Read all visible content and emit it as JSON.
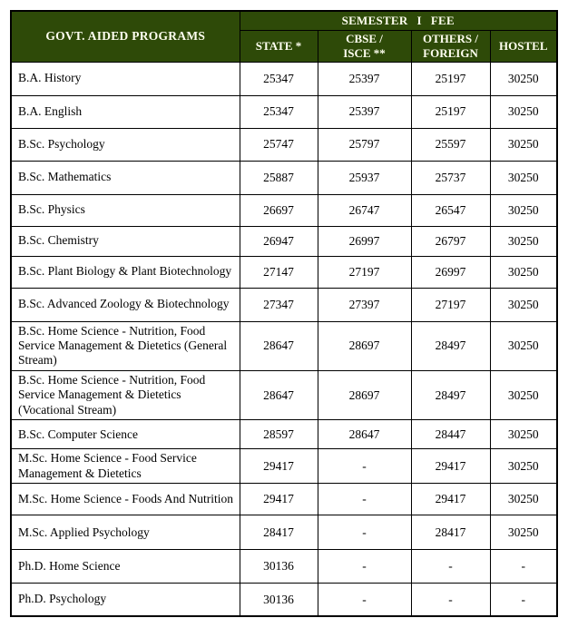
{
  "table": {
    "program_header": "GOVT. AIDED PROGRAMS",
    "fee_header": "SEMESTER I FEE",
    "columns": {
      "state": "STATE *",
      "cbse_isce": "CBSE /\nISCE **",
      "others_foreign": "OTHERS /\nFOREIGN",
      "hostel": "HOSTEL"
    },
    "rows": [
      {
        "program": "B.A. History",
        "state": "25347",
        "cbse": "25397",
        "others": "25197",
        "hostel": "30250"
      },
      {
        "program": "B.A. English",
        "state": "25347",
        "cbse": "25397",
        "others": "25197",
        "hostel": "30250"
      },
      {
        "program": "B.Sc. Psychology",
        "state": "25747",
        "cbse": "25797",
        "others": "25597",
        "hostel": "30250"
      },
      {
        "program": "B.Sc. Mathematics",
        "state": "25887",
        "cbse": "25937",
        "others": "25737",
        "hostel": "30250"
      },
      {
        "program": "B.Sc. Physics",
        "state": "26697",
        "cbse": "26747",
        "others": "26547",
        "hostel": "30250"
      },
      {
        "program": "B.Sc. Chemistry",
        "state": "26947",
        "cbse": "26997",
        "others": "26797",
        "hostel": "30250"
      },
      {
        "program": "B.Sc. Plant Biology & Plant Biotechnology",
        "state": "27147",
        "cbse": "27197",
        "others": "26997",
        "hostel": "30250"
      },
      {
        "program": "B.Sc. Advanced Zoology & Biotechnology",
        "state": "27347",
        "cbse": "27397",
        "others": "27197",
        "hostel": "30250"
      },
      {
        "program": "B.Sc. Home Science - Nutrition, Food Service Management & Dietetics (General Stream)",
        "state": "28647",
        "cbse": "28697",
        "others": "28497",
        "hostel": "30250"
      },
      {
        "program": "B.Sc. Home Science - Nutrition, Food Service Management & Dietetics (Vocational Stream)",
        "state": "28647",
        "cbse": "28697",
        "others": "28497",
        "hostel": "30250"
      },
      {
        "program": "B.Sc. Computer Science",
        "state": "28597",
        "cbse": "28647",
        "others": "28447",
        "hostel": "30250"
      },
      {
        "program": "M.Sc. Home Science - Food Service Management & Dietetics",
        "state": "29417",
        "cbse": "-",
        "others": "29417",
        "hostel": "30250"
      },
      {
        "program": "M.Sc. Home Science - Foods And Nutrition",
        "state": "29417",
        "cbse": "-",
        "others": "29417",
        "hostel": "30250"
      },
      {
        "program": "M.Sc. Applied Psychology",
        "state": "28417",
        "cbse": "-",
        "others": "28417",
        "hostel": "30250"
      },
      {
        "program": "Ph.D. Home Science",
        "state": "30136",
        "cbse": "-",
        "others": "-",
        "hostel": "-"
      },
      {
        "program": "Ph.D. Psychology",
        "state": "30136",
        "cbse": "-",
        "others": "-",
        "hostel": "-"
      }
    ]
  },
  "colors": {
    "header_bg": "#2E4A08",
    "header_text": "#FFFFF0",
    "border": "#000000",
    "body_bg": "#FFFFFF",
    "body_text": "#000000"
  }
}
